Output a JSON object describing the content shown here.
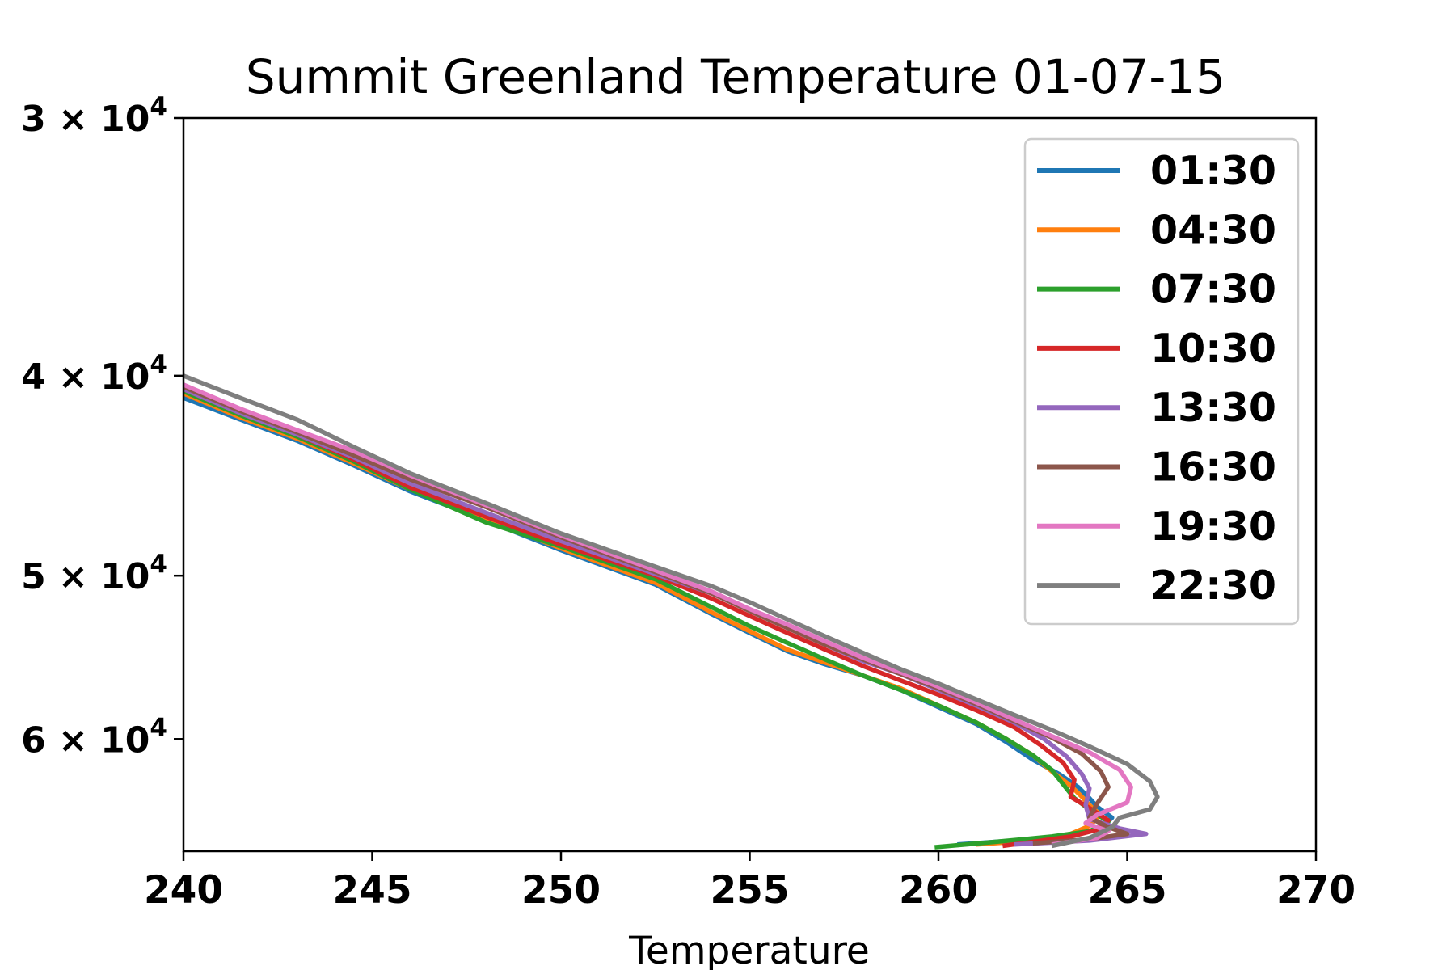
{
  "chart_data": {
    "type": "line",
    "title": "Summit Greenland Temperature 01-07-15",
    "xlabel": "Temperature",
    "ylabel": "",
    "xlim": [
      240,
      270
    ],
    "ylim": [
      68000,
      30000
    ],
    "yscale": "log",
    "y_inverted": true,
    "grid": false,
    "legend_position": "top-right",
    "xticks": [
      "240",
      "245",
      "250",
      "255",
      "260",
      "265",
      "270"
    ],
    "yticks": [
      {
        "value": 30000,
        "mant": "3",
        "base": "10",
        "exp": "4"
      },
      {
        "value": 40000,
        "mant": "4",
        "base": "10",
        "exp": "4"
      },
      {
        "value": 50000,
        "mant": "5",
        "base": "10",
        "exp": "4"
      },
      {
        "value": 60000,
        "mant": "6",
        "base": "10",
        "exp": "4"
      }
    ],
    "series": [
      {
        "name": "01:30",
        "color": "#1f77b4",
        "x": [
          240,
          241.5,
          243,
          244.5,
          246,
          248,
          250,
          252.5,
          254,
          255,
          256,
          257,
          258,
          259,
          260,
          261,
          261.8,
          262.5,
          263.2,
          263.7,
          264,
          264.2,
          264.6,
          264.3,
          263.5,
          262,
          260.5
        ],
        "y": [
          41000,
          42000,
          43000,
          44200,
          45500,
          47000,
          48600,
          50500,
          52200,
          53300,
          54400,
          55200,
          55900,
          56800,
          57900,
          59000,
          60200,
          61400,
          62400,
          63300,
          64100,
          64700,
          65500,
          66300,
          66800,
          67200,
          67500
        ]
      },
      {
        "name": "04:30",
        "color": "#ff7f0e",
        "x": [
          240,
          241.5,
          243,
          244.5,
          246,
          248,
          250,
          252.5,
          254,
          255,
          256,
          257,
          258,
          259,
          260,
          261,
          261.8,
          262.5,
          263,
          263.5,
          263.8,
          264,
          264.3,
          264,
          263.5,
          262.5,
          261
        ],
        "y": [
          40800,
          41900,
          42900,
          44100,
          45400,
          46900,
          48500,
          50400,
          52100,
          53200,
          54300,
          55100,
          55900,
          56700,
          57800,
          58900,
          60000,
          61100,
          62200,
          63200,
          64000,
          64600,
          65300,
          66100,
          66700,
          67200,
          67500
        ]
      },
      {
        "name": "07:30",
        "color": "#2ca02c",
        "x": [
          240,
          241.5,
          243,
          244.5,
          246,
          248,
          250,
          252.5,
          254,
          255,
          256,
          257,
          258,
          259,
          260,
          261,
          261.8,
          262.5,
          263,
          263.3,
          263.6,
          264,
          264.5,
          264,
          263,
          261.5,
          259.9
        ],
        "y": [
          40700,
          41800,
          42800,
          44000,
          45400,
          47100,
          48400,
          50200,
          51800,
          52900,
          53900,
          54900,
          55900,
          56800,
          57800,
          58900,
          60000,
          61100,
          62100,
          63100,
          64100,
          64900,
          65800,
          66500,
          66900,
          67300,
          67700
        ]
      },
      {
        "name": "10:30",
        "color": "#d62728",
        "x": [
          240,
          241.5,
          243,
          244.5,
          246,
          248,
          250,
          252.5,
          254,
          255,
          256,
          257,
          258,
          259,
          260,
          261,
          262,
          262.7,
          263.3,
          263.6,
          263.5,
          264,
          264.5,
          264.2,
          263.5,
          262.5,
          261.7
        ],
        "y": [
          40600,
          41700,
          42700,
          43900,
          45300,
          46800,
          48300,
          50000,
          51300,
          52300,
          53300,
          54300,
          55300,
          56200,
          57100,
          58100,
          59200,
          60400,
          61600,
          62800,
          64000,
          64800,
          65700,
          66400,
          66900,
          67300,
          67600
        ]
      },
      {
        "name": "13:30",
        "color": "#9467bd",
        "x": [
          240,
          241.5,
          243,
          244.5,
          246,
          248,
          250,
          252.5,
          254,
          255,
          256,
          257,
          258,
          259,
          260,
          261,
          262,
          262.8,
          263.4,
          263.8,
          264,
          263.9,
          264,
          264.8,
          265.5,
          264,
          262
        ],
        "y": [
          40600,
          41700,
          42700,
          43800,
          45100,
          46600,
          48100,
          49900,
          51000,
          52000,
          53000,
          54000,
          55000,
          55800,
          56800,
          57800,
          58900,
          60000,
          61200,
          62400,
          63400,
          64600,
          65600,
          66300,
          66700,
          67200,
          67500
        ]
      },
      {
        "name": "16:30",
        "color": "#8c564b",
        "x": [
          240,
          241.5,
          243,
          244.5,
          246,
          248,
          250,
          252.5,
          254,
          255,
          256,
          257,
          258,
          259,
          260,
          261,
          262,
          263,
          263.8,
          264.3,
          264.5,
          264.2,
          264,
          264.5,
          265,
          264,
          262.5
        ],
        "y": [
          40500,
          41600,
          42600,
          43700,
          44900,
          46300,
          47900,
          49800,
          51000,
          52000,
          53000,
          54000,
          54900,
          55800,
          56700,
          57700,
          58800,
          59900,
          61000,
          62200,
          63300,
          64500,
          65500,
          66200,
          66700,
          67100,
          67400
        ]
      },
      {
        "name": "19:30",
        "color": "#e377c2",
        "x": [
          240,
          241.5,
          243,
          244.5,
          246,
          248,
          250,
          252.5,
          254,
          255,
          256,
          257,
          258,
          259,
          260,
          261,
          262,
          263,
          264,
          264.8,
          265.1,
          265,
          264.2,
          263.9,
          264.5,
          264.2,
          263
        ],
        "y": [
          40400,
          41500,
          42500,
          43500,
          44700,
          46200,
          47800,
          49700,
          50900,
          51900,
          52800,
          53800,
          54800,
          55700,
          56600,
          57600,
          58700,
          59800,
          60900,
          62100,
          63300,
          64400,
          65300,
          65900,
          66500,
          67000,
          67500
        ]
      },
      {
        "name": "22:30",
        "color": "#7f7f7f",
        "x": [
          240,
          241.5,
          243,
          244.5,
          246,
          248,
          250,
          252.5,
          254,
          255,
          256,
          257,
          258,
          259,
          260,
          261,
          262,
          263,
          264,
          265,
          265.6,
          265.8,
          265.6,
          264.8,
          264.6,
          264,
          263
        ],
        "y": [
          40000,
          41000,
          42000,
          43300,
          44600,
          46100,
          47700,
          49500,
          50600,
          51500,
          52500,
          53500,
          54500,
          55500,
          56400,
          57400,
          58400,
          59400,
          60500,
          61700,
          62900,
          64000,
          64900,
          65500,
          66200,
          67000,
          67600
        ]
      }
    ]
  }
}
